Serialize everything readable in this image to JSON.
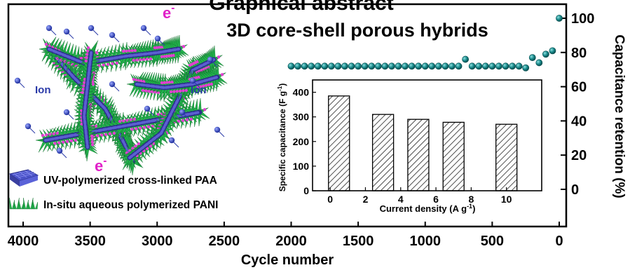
{
  "page_title": "Graphical abstract",
  "colors": {
    "point_fill": "#1a8b8c",
    "point_stroke": "#0a4f50",
    "bar_hatch": "#222222",
    "hybrid_green": "#22b24c",
    "hybrid_magenta": "#e040d0",
    "fiber_blue": "#5b5fd0",
    "ion_blue": "#2a3aa8"
  },
  "chart_data": [
    {
      "type": "scatter",
      "title": "3D core-shell porous hybrids",
      "xlabel": "Cycle number",
      "ylabel": "Capacitance retention (%)",
      "xlim": [
        4000,
        0
      ],
      "x_reversed": true,
      "ylim": [
        -18,
        105
      ],
      "x_ticks": [
        4000,
        3500,
        3000,
        2500,
        2000,
        1500,
        1000,
        500,
        0
      ],
      "y_ticks": [
        0,
        20,
        40,
        60,
        80,
        100
      ],
      "y_axis_side": "right",
      "grid": false,
      "x": [
        0,
        50,
        100,
        150,
        200,
        250,
        300,
        350,
        400,
        450,
        500,
        550,
        600,
        650,
        700,
        750,
        800,
        850,
        900,
        950,
        1000,
        1050,
        1100,
        1150,
        1200,
        1250,
        1300,
        1350,
        1400,
        1450,
        1500,
        1550,
        1600,
        1650,
        1700,
        1750,
        1800,
        1850,
        1900,
        1950,
        2000
      ],
      "y": [
        100,
        81,
        79,
        74,
        77,
        71,
        72,
        72,
        72,
        72,
        72,
        72,
        72,
        72,
        76,
        72,
        72,
        72,
        72,
        72,
        72,
        72,
        72,
        72,
        72,
        72,
        72,
        72,
        72,
        72,
        72,
        72,
        72,
        72,
        72,
        72,
        72,
        72,
        72,
        72,
        72
      ]
    },
    {
      "type": "bar",
      "inset": true,
      "xlabel": "Current density (A g",
      "xlabel_sup": "-1",
      "xlabel_tail": ")",
      "ylabel": "Specific capacitance (F g",
      "ylabel_sup": "-1",
      "ylabel_tail": ")",
      "xlim": [
        -1,
        12
      ],
      "ylim": [
        0,
        450
      ],
      "x_ticks": [
        0,
        2,
        4,
        6,
        8,
        10
      ],
      "y_ticks": [
        0,
        100,
        200,
        300,
        400
      ],
      "x": [
        0.5,
        3,
        5,
        7,
        10
      ],
      "values": [
        385,
        310,
        290,
        278,
        270
      ]
    }
  ],
  "legend": [
    {
      "label": "UV-polymerized cross-linked PAA"
    },
    {
      "label": "In-situ aqueous polymerized PANI"
    }
  ],
  "annotations": {
    "electron_label": "e",
    "electron_sup": "-",
    "ion_label": "Ion"
  }
}
